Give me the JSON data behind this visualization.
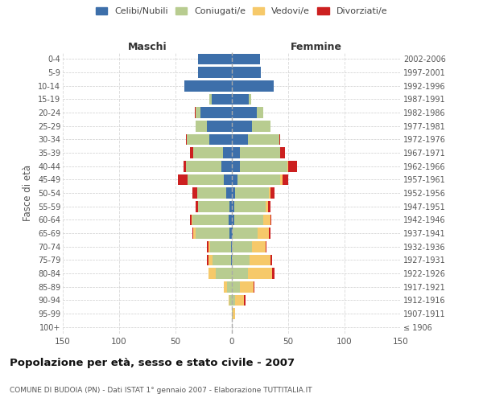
{
  "age_groups": [
    "100+",
    "95-99",
    "90-94",
    "85-89",
    "80-84",
    "75-79",
    "70-74",
    "65-69",
    "60-64",
    "55-59",
    "50-54",
    "45-49",
    "40-44",
    "35-39",
    "30-34",
    "25-29",
    "20-24",
    "15-19",
    "10-14",
    "5-9",
    "0-4"
  ],
  "birth_years": [
    "≤ 1906",
    "1907-1911",
    "1912-1916",
    "1917-1921",
    "1922-1926",
    "1927-1931",
    "1932-1936",
    "1937-1941",
    "1942-1946",
    "1947-1951",
    "1952-1956",
    "1957-1961",
    "1962-1966",
    "1967-1971",
    "1972-1976",
    "1977-1981",
    "1982-1986",
    "1987-1991",
    "1992-1996",
    "1997-2001",
    "2002-2006"
  ],
  "male": {
    "celibi": [
      0,
      0,
      0,
      0,
      0,
      1,
      1,
      2,
      3,
      2,
      5,
      7,
      9,
      8,
      20,
      22,
      28,
      18,
      42,
      30,
      30
    ],
    "coniugati": [
      0,
      0,
      2,
      4,
      14,
      16,
      18,
      30,
      32,
      28,
      26,
      32,
      32,
      26,
      20,
      10,
      4,
      2,
      0,
      0,
      0
    ],
    "vedovi": [
      0,
      0,
      1,
      3,
      7,
      4,
      2,
      2,
      1,
      0,
      0,
      0,
      0,
      0,
      0,
      0,
      0,
      0,
      0,
      0,
      0
    ],
    "divorziati": [
      0,
      0,
      0,
      0,
      0,
      1,
      1,
      1,
      1,
      2,
      4,
      9,
      2,
      3,
      1,
      0,
      1,
      0,
      0,
      0,
      0
    ]
  },
  "female": {
    "nubili": [
      0,
      0,
      0,
      0,
      0,
      0,
      0,
      1,
      2,
      2,
      3,
      5,
      7,
      7,
      14,
      18,
      22,
      15,
      37,
      26,
      25
    ],
    "coniugate": [
      0,
      1,
      3,
      7,
      14,
      16,
      18,
      22,
      26,
      28,
      30,
      38,
      42,
      36,
      28,
      16,
      6,
      2,
      0,
      0,
      0
    ],
    "vedove": [
      0,
      2,
      8,
      12,
      22,
      18,
      12,
      10,
      6,
      2,
      1,
      2,
      1,
      0,
      0,
      0,
      0,
      0,
      0,
      0,
      0
    ],
    "divorziate": [
      0,
      0,
      1,
      1,
      2,
      2,
      1,
      1,
      1,
      2,
      4,
      5,
      8,
      4,
      1,
      0,
      0,
      0,
      0,
      0,
      0
    ]
  },
  "colors": {
    "celibi": "#3d6faa",
    "coniugati": "#b8cc90",
    "vedovi": "#f6c96a",
    "divorziati": "#cc2020"
  },
  "xlim": 150,
  "title": "Popolazione per età, sesso e stato civile - 2007",
  "subtitle": "COMUNE DI BUDOIA (PN) - Dati ISTAT 1° gennaio 2007 - Elaborazione TUTTITALIA.IT",
  "ylabel_left": "Fasce di età",
  "xlabel_male": "Maschi",
  "xlabel_female": "Femmine"
}
